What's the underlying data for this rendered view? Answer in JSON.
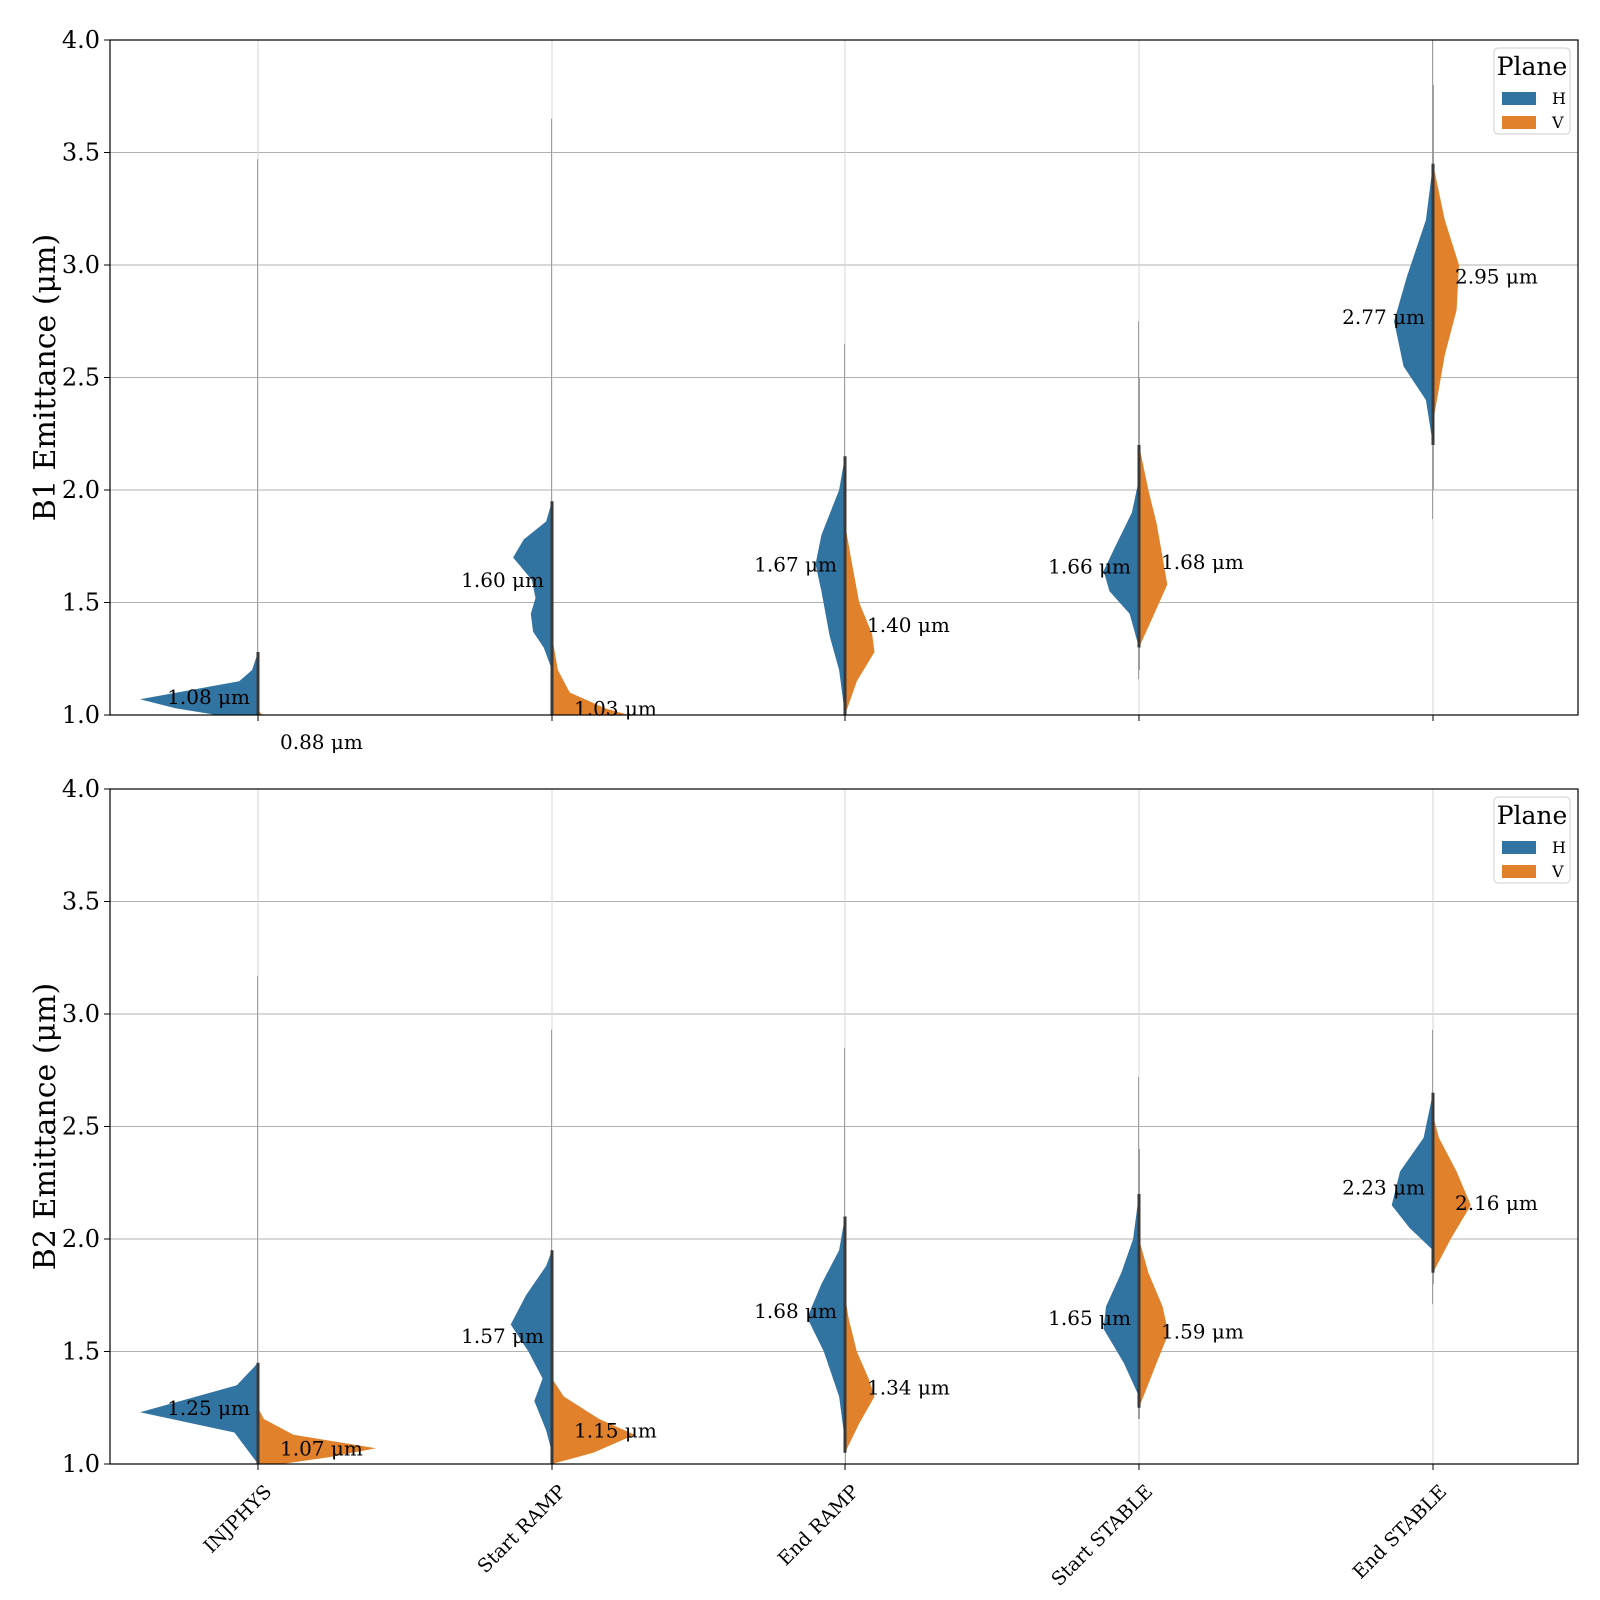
{
  "colors": {
    "H": "#3274a1",
    "V": "#e1812c",
    "grid": "#b0b0b0",
    "center_line": "#3a3a3a"
  },
  "chart_data": [
    {
      "type": "violin",
      "subtype": "split-violin",
      "ylabel": "B1 Emittance (μm)",
      "ylim": [
        1.0,
        4.0
      ],
      "yticks": [
        "1.0",
        "1.5",
        "2.0",
        "2.5",
        "3.0",
        "3.5",
        "4.0"
      ],
      "grid": true,
      "show_category_labels": false,
      "categories": [
        "INJPHYS",
        "Start RAMP",
        "End RAMP",
        "Start STABLE",
        "End STABLE"
      ],
      "legend": {
        "title": "Plane",
        "entries": [
          "H",
          "V"
        ],
        "placement": "top-right"
      },
      "series": [
        {
          "name": "H",
          "annotations": [
            "1.08 μm",
            "1.60 μm",
            "1.67 μm",
            "1.66 μm",
            "2.77 μm"
          ],
          "medians": [
            1.08,
            1.6,
            1.67,
            1.66,
            2.77
          ],
          "violins": [
            {
              "range": [
                1.0,
                3.47
              ],
              "profile": [
                [
                  1.0,
                  0.35
                ],
                [
                  1.03,
                  0.7
                ],
                [
                  1.07,
                  1.0
                ],
                [
                  1.15,
                  0.16
                ],
                [
                  1.2,
                  0.05
                ],
                [
                  1.28,
                  0.0
                ]
              ]
            },
            {
              "range": [
                1.0,
                3.65
              ],
              "profile": [
                [
                  1.02,
                  0.0
                ],
                [
                  1.2,
                  0.0
                ],
                [
                  1.3,
                  0.07
                ],
                [
                  1.37,
                  0.16
                ],
                [
                  1.45,
                  0.18
                ],
                [
                  1.52,
                  0.14
                ],
                [
                  1.6,
                  0.17
                ],
                [
                  1.7,
                  0.33
                ],
                [
                  1.78,
                  0.24
                ],
                [
                  1.86,
                  0.05
                ],
                [
                  1.95,
                  0.0
                ]
              ]
            },
            {
              "range": [
                1.0,
                2.65
              ],
              "profile": [
                [
                  1.0,
                  0.0
                ],
                [
                  1.2,
                  0.05
                ],
                [
                  1.35,
                  0.13
                ],
                [
                  1.55,
                  0.2
                ],
                [
                  1.67,
                  0.25
                ],
                [
                  1.8,
                  0.2
                ],
                [
                  2.0,
                  0.05
                ],
                [
                  2.15,
                  0.0
                ]
              ]
            },
            {
              "range": [
                1.16,
                2.75
              ],
              "profile": [
                [
                  1.3,
                  0.0
                ],
                [
                  1.45,
                  0.08
                ],
                [
                  1.55,
                  0.25
                ],
                [
                  1.64,
                  0.3
                ],
                [
                  1.75,
                  0.2
                ],
                [
                  1.9,
                  0.06
                ],
                [
                  2.05,
                  0.0
                ]
              ]
            },
            {
              "range": [
                1.87,
                4.0
              ],
              "profile": [
                [
                  2.2,
                  0.0
                ],
                [
                  2.4,
                  0.06
                ],
                [
                  2.55,
                  0.25
                ],
                [
                  2.75,
                  0.33
                ],
                [
                  2.95,
                  0.22
                ],
                [
                  3.2,
                  0.06
                ],
                [
                  3.45,
                  0.0
                ]
              ]
            }
          ]
        },
        {
          "name": "V",
          "annotations": [
            "0.88 μm",
            "1.03 μm",
            "1.40 μm",
            "1.68 μm",
            "2.95 μm"
          ],
          "medians": [
            0.88,
            1.03,
            1.4,
            1.68,
            2.95
          ],
          "violins": [
            {
              "range": [
                1.0,
                1.02
              ],
              "profile": [
                [
                  1.0,
                  0.04
                ],
                [
                  1.02,
                  0.0
                ]
              ]
            },
            {
              "range": [
                1.0,
                1.4
              ],
              "profile": [
                [
                  1.0,
                  0.65
                ],
                [
                  1.03,
                  0.45
                ],
                [
                  1.1,
                  0.15
                ],
                [
                  1.2,
                  0.05
                ],
                [
                  1.35,
                  0.0
                ]
              ]
            },
            {
              "range": [
                1.0,
                2.0
              ],
              "profile": [
                [
                  1.0,
                  0.0
                ],
                [
                  1.15,
                  0.1
                ],
                [
                  1.28,
                  0.25
                ],
                [
                  1.36,
                  0.23
                ],
                [
                  1.5,
                  0.12
                ],
                [
                  1.7,
                  0.05
                ],
                [
                  1.85,
                  0.0
                ]
              ]
            },
            {
              "range": [
                1.2,
                2.5
              ],
              "profile": [
                [
                  1.3,
                  0.0
                ],
                [
                  1.45,
                  0.13
                ],
                [
                  1.58,
                  0.24
                ],
                [
                  1.7,
                  0.2
                ],
                [
                  1.85,
                  0.15
                ],
                [
                  2.0,
                  0.08
                ],
                [
                  2.2,
                  0.0
                ]
              ]
            },
            {
              "range": [
                2.0,
                3.8
              ],
              "profile": [
                [
                  2.3,
                  0.0
                ],
                [
                  2.6,
                  0.1
                ],
                [
                  2.8,
                  0.2
                ],
                [
                  3.0,
                  0.22
                ],
                [
                  3.2,
                  0.1
                ],
                [
                  3.45,
                  0.0
                ]
              ]
            }
          ]
        }
      ]
    },
    {
      "type": "violin",
      "subtype": "split-violin",
      "ylabel": "B2 Emittance (μm)",
      "ylim": [
        1.0,
        4.0
      ],
      "yticks": [
        "1.0",
        "1.5",
        "2.0",
        "2.5",
        "3.0",
        "3.5",
        "4.0"
      ],
      "grid": true,
      "show_category_labels": true,
      "categories": [
        "INJPHYS",
        "Start RAMP",
        "End RAMP",
        "Start STABLE",
        "End STABLE"
      ],
      "legend": {
        "title": "Plane",
        "entries": [
          "H",
          "V"
        ],
        "placement": "top-right"
      },
      "series": [
        {
          "name": "H",
          "annotations": [
            "1.25 μm",
            "1.57 μm",
            "1.68 μm",
            "1.65 μm",
            "2.23 μm"
          ],
          "medians": [
            1.25,
            1.57,
            1.68,
            1.65,
            2.23
          ],
          "violins": [
            {
              "range": [
                1.0,
                3.17
              ],
              "profile": [
                [
                  1.0,
                  0.0
                ],
                [
                  1.14,
                  0.2
                ],
                [
                  1.23,
                  1.0
                ],
                [
                  1.35,
                  0.18
                ],
                [
                  1.45,
                  0.0
                ]
              ]
            },
            {
              "range": [
                1.0,
                2.93
              ],
              "profile": [
                [
                  1.05,
                  0.0
                ],
                [
                  1.15,
                  0.05
                ],
                [
                  1.28,
                  0.15
                ],
                [
                  1.38,
                  0.08
                ],
                [
                  1.5,
                  0.2
                ],
                [
                  1.62,
                  0.35
                ],
                [
                  1.75,
                  0.22
                ],
                [
                  1.88,
                  0.05
                ],
                [
                  1.95,
                  0.0
                ]
              ]
            },
            {
              "range": [
                1.05,
                2.85
              ],
              "profile": [
                [
                  1.1,
                  0.0
                ],
                [
                  1.3,
                  0.05
                ],
                [
                  1.5,
                  0.18
                ],
                [
                  1.65,
                  0.32
                ],
                [
                  1.8,
                  0.2
                ],
                [
                  1.95,
                  0.05
                ],
                [
                  2.1,
                  0.0
                ]
              ]
            },
            {
              "range": [
                1.2,
                2.72
              ],
              "profile": [
                [
                  1.3,
                  0.0
                ],
                [
                  1.45,
                  0.13
                ],
                [
                  1.6,
                  0.3
                ],
                [
                  1.7,
                  0.28
                ],
                [
                  1.85,
                  0.15
                ],
                [
                  2.0,
                  0.05
                ],
                [
                  2.2,
                  0.0
                ]
              ]
            },
            {
              "range": [
                1.71,
                2.93
              ],
              "profile": [
                [
                  1.95,
                  0.0
                ],
                [
                  2.05,
                  0.2
                ],
                [
                  2.15,
                  0.35
                ],
                [
                  2.3,
                  0.28
                ],
                [
                  2.45,
                  0.08
                ],
                [
                  2.65,
                  0.0
                ]
              ]
            }
          ]
        },
        {
          "name": "V",
          "annotations": [
            "1.07 μm",
            "1.15 μm",
            "1.34 μm",
            "1.59 μm",
            "2.16 μm"
          ],
          "medians": [
            1.07,
            1.15,
            1.34,
            1.59,
            2.16
          ],
          "violins": [
            {
              "range": [
                1.0,
                1.25
              ],
              "profile": [
                [
                  1.0,
                  0.2
                ],
                [
                  1.03,
                  0.6
                ],
                [
                  1.07,
                  1.0
                ],
                [
                  1.13,
                  0.3
                ],
                [
                  1.2,
                  0.05
                ],
                [
                  1.25,
                  0.0
                ]
              ]
            },
            {
              "range": [
                1.0,
                1.4
              ],
              "profile": [
                [
                  1.0,
                  0.0
                ],
                [
                  1.05,
                  0.35
                ],
                [
                  1.13,
                  0.7
                ],
                [
                  1.2,
                  0.4
                ],
                [
                  1.3,
                  0.1
                ],
                [
                  1.38,
                  0.0
                ]
              ]
            },
            {
              "range": [
                1.0,
                1.8
              ],
              "profile": [
                [
                  1.05,
                  0.0
                ],
                [
                  1.18,
                  0.12
                ],
                [
                  1.3,
                  0.25
                ],
                [
                  1.38,
                  0.2
                ],
                [
                  1.5,
                  0.1
                ],
                [
                  1.65,
                  0.03
                ],
                [
                  1.75,
                  0.0
                ]
              ]
            },
            {
              "range": [
                1.2,
                2.4
              ],
              "profile": [
                [
                  1.25,
                  0.0
                ],
                [
                  1.45,
                  0.15
                ],
                [
                  1.58,
                  0.25
                ],
                [
                  1.7,
                  0.2
                ],
                [
                  1.85,
                  0.08
                ],
                [
                  2.0,
                  0.0
                ]
              ]
            },
            {
              "range": [
                1.8,
                2.6
              ],
              "profile": [
                [
                  1.85,
                  0.0
                ],
                [
                  2.0,
                  0.15
                ],
                [
                  2.15,
                  0.32
                ],
                [
                  2.3,
                  0.2
                ],
                [
                  2.45,
                  0.05
                ],
                [
                  2.55,
                  0.0
                ]
              ]
            }
          ]
        }
      ]
    }
  ]
}
